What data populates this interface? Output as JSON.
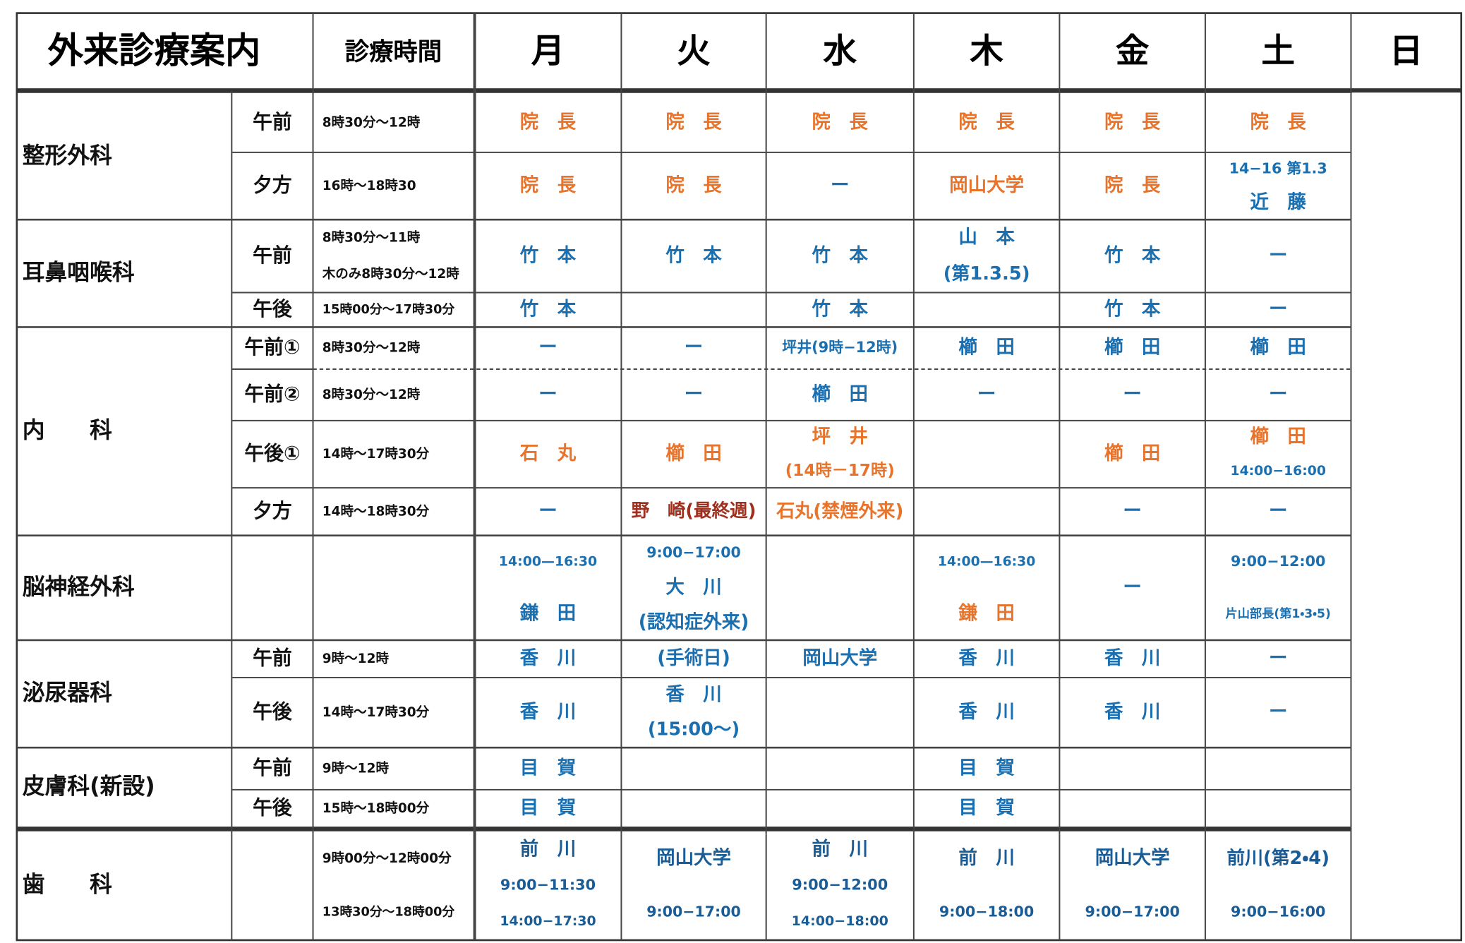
{
  "header": {
    "title": "外来診療案内",
    "time_header": "診療時間",
    "days": [
      "月",
      "火",
      "水",
      "木",
      "金",
      "土",
      "日"
    ]
  },
  "departments": [
    {
      "name": "整形外科",
      "sessions": [
        {
          "label": "午前",
          "hours": [
            "8時30分～12時"
          ],
          "cells": [
            {
              "lines": [
                "院　長"
              ],
              "color": "#e8742c"
            },
            {
              "lines": [
                "院　長"
              ],
              "color": "#e8742c"
            },
            {
              "lines": [
                "院　長"
              ],
              "color": "#e8742c"
            },
            {
              "lines": [
                "院　長"
              ],
              "color": "#e8742c"
            },
            {
              "lines": [
                "院　長"
              ],
              "color": "#e8742c"
            },
            {
              "lines": [
                "院　長"
              ],
              "color": "#e8742c"
            }
          ]
        },
        {
          "label": "夕方",
          "hours": [
            "16時～18時30"
          ],
          "cells": [
            {
              "lines": [
                "院　長"
              ],
              "color": "#e8742c"
            },
            {
              "lines": [
                "院　長"
              ],
              "color": "#e8742c"
            },
            {
              "lines": [
                "ー"
              ],
              "color": "#1a6fb0"
            },
            {
              "lines": [
                "岡山大学"
              ],
              "color": "#e8742c"
            },
            {
              "lines": [
                "院　長"
              ],
              "color": "#e8742c"
            },
            {
              "lines": [
                "14−16 第1.3",
                "近　藤"
              ],
              "color": "#1a6fb0"
            }
          ]
        }
      ]
    },
    {
      "name": "耳鼻咽喉科",
      "sessions": [
        {
          "label": "午前",
          "hours": [
            "8時30分～11時",
            "木のみ8時30分～12時"
          ],
          "cells": [
            {
              "lines": [
                "竹　本"
              ],
              "color": "#1a6fb0"
            },
            {
              "lines": [
                "竹　本"
              ],
              "color": "#1a6fb0"
            },
            {
              "lines": [
                "竹　本"
              ],
              "color": "#1a6fb0"
            },
            {
              "lines": [
                "山　本",
                "(第1.3.5)"
              ],
              "color": "#1a6fb0"
            },
            {
              "lines": [
                "竹　本"
              ],
              "color": "#1a6fb0"
            },
            {
              "lines": [
                "ー"
              ],
              "color": "#1a6fb0"
            }
          ]
        },
        {
          "label": "午後",
          "hours": [
            "15時00分～17時30分"
          ],
          "cells": [
            {
              "lines": [
                "竹　本"
              ],
              "color": "#1a6fb0"
            },
            {
              "lines": []
            },
            {
              "lines": [
                "竹　本"
              ],
              "color": "#1a6fb0"
            },
            {
              "lines": []
            },
            {
              "lines": [
                "竹　本"
              ],
              "color": "#1a6fb0"
            },
            {
              "lines": [
                "ー"
              ],
              "color": "#1a6fb0"
            }
          ]
        }
      ]
    },
    {
      "name": "内　　科",
      "sessions": [
        {
          "label": "午前①",
          "hours": [
            "8時30分～12時"
          ],
          "cells": [
            {
              "lines": [
                "ー"
              ],
              "color": "#1a6fb0"
            },
            {
              "lines": [
                "ー"
              ],
              "color": "#1a6fb0"
            },
            {
              "lines": [
                "坪井(9時−12時)"
              ],
              "color": "#1a6fb0"
            },
            {
              "lines": [
                "櫛　田"
              ],
              "color": "#1a6fb0"
            },
            {
              "lines": [
                "櫛　田"
              ],
              "color": "#1a6fb0"
            },
            {
              "lines": [
                "櫛　田"
              ],
              "color": "#1a6fb0"
            }
          ]
        },
        {
          "label": "午前②",
          "hours": [
            "8時30分～12時"
          ],
          "cells": [
            {
              "lines": [
                "ー"
              ],
              "color": "#1a6fb0"
            },
            {
              "lines": [
                "ー"
              ],
              "color": "#1a6fb0"
            },
            {
              "lines": [
                "櫛　田"
              ],
              "color": "#1a6fb0"
            },
            {
              "lines": [
                "ー"
              ],
              "color": "#1a6fb0"
            },
            {
              "lines": [
                "ー"
              ],
              "color": "#1a6fb0"
            },
            {
              "lines": [
                "ー"
              ],
              "color": "#1a6fb0"
            }
          ]
        },
        {
          "label": "午後①",
          "hours": [
            "14時～17時30分"
          ],
          "cells": [
            {
              "lines": [
                "石　丸"
              ],
              "color": "#e8742c"
            },
            {
              "lines": [
                "櫛　田"
              ],
              "color": "#e8742c"
            },
            {
              "lines": [
                "坪　井",
                "(14時－17時)"
              ],
              "color": "#e8742c"
            },
            {
              "lines": []
            },
            {
              "lines": [
                "櫛　田"
              ],
              "color": "#e8742c"
            },
            {
              "lines": [
                "櫛　田",
                "14:00−16:00"
              ],
              "colors": [
                "#e8742c",
                "#1a6fb0"
              ]
            }
          ]
        },
        {
          "label": "夕方",
          "hours": [
            "14時～18時30分"
          ],
          "cells": [
            {
              "lines": [
                "ー"
              ],
              "color": "#1a6fb0"
            },
            {
              "lines": [
                "野　崎(最終週)"
              ],
              "color": "#a0301e"
            },
            {
              "lines": [
                "石丸(禁煙外来)"
              ],
              "color": "#e8742c"
            },
            {
              "lines": []
            },
            {
              "lines": [
                "ー"
              ],
              "color": "#1a6fb0"
            },
            {
              "lines": [
                "ー"
              ],
              "color": "#1a6fb0"
            }
          ]
        }
      ]
    },
    {
      "name": "脳神経外科",
      "sessions": [
        {
          "hours": [],
          "cells": [
            {
              "lines": [
                "14:00—16:30",
                "鎌　田"
              ],
              "color": "#1a6fb0"
            },
            {
              "lines": [
                "9:00−17:00",
                "大　川",
                "(認知症外来)"
              ],
              "color": "#1a6fb0"
            },
            {
              "lines": []
            },
            {
              "lines": [
                "14:00—16:30",
                "鎌　田"
              ],
              "colors": [
                "#1a6fb0",
                "#e8742c"
              ]
            },
            {
              "lines": [
                "ー"
              ],
              "color": "#1a6fb0"
            },
            {
              "lines": [
                "9:00−12:00",
                "片山部長(第1・3・5)"
              ],
              "color": "#1a6fb0"
            }
          ]
        }
      ]
    },
    {
      "name": "泌尿器科",
      "sessions": [
        {
          "label": "午前",
          "hours": [
            "9時～12時"
          ],
          "cells": [
            {
              "lines": [
                "香　川"
              ],
              "color": "#1a6fb0"
            },
            {
              "lines": [
                "(手術日)"
              ],
              "color": "#1a6fb0"
            },
            {
              "lines": [
                "岡山大学"
              ],
              "color": "#1a6fb0"
            },
            {
              "lines": [
                "香　川"
              ],
              "color": "#1a6fb0"
            },
            {
              "lines": [
                "香　川"
              ],
              "color": "#1a6fb0"
            },
            {
              "lines": [
                "ー"
              ],
              "color": "#1a6fb0"
            }
          ]
        },
        {
          "label": "午後",
          "hours": [
            "14時～17時30分"
          ],
          "cells": [
            {
              "lines": [
                "香　川"
              ],
              "color": "#1a6fb0"
            },
            {
              "lines": [
                "香　川",
                "(15:00～)"
              ],
              "color": "#1a6fb0"
            },
            {
              "lines": []
            },
            {
              "lines": [
                "香　川"
              ],
              "color": "#1a6fb0"
            },
            {
              "lines": [
                "香　川"
              ],
              "color": "#1a6fb0"
            },
            {
              "lines": [
                "ー"
              ],
              "color": "#1a6fb0"
            }
          ]
        }
      ]
    },
    {
      "name": "皮膚科(新設)",
      "sessions": [
        {
          "label": "午前",
          "hours": [
            "9時～12時"
          ],
          "cells": [
            {
              "lines": [
                "目　賀"
              ],
              "color": "#1a6fb0"
            },
            {
              "lines": []
            },
            {
              "lines": []
            },
            {
              "lines": [
                "目　賀"
              ],
              "color": "#1a6fb0"
            },
            {
              "lines": []
            },
            {
              "lines": []
            }
          ]
        },
        {
          "label": "午後",
          "hours": [
            "15時～18時00分"
          ],
          "cells": [
            {
              "lines": [
                "目　賀"
              ],
              "color": "#1a6fb0"
            },
            {
              "lines": []
            },
            {
              "lines": []
            },
            {
              "lines": [
                "目　賀"
              ],
              "color": "#1a6fb0"
            },
            {
              "lines": []
            },
            {
              "lines": []
            }
          ]
        }
      ]
    },
    {
      "name": "歯　　科",
      "sessions": [
        {
          "hours": [
            "9時00分～12時00分",
            "13時30分～18時00分"
          ],
          "cells": [
            {
              "lines": [
                "前　川",
                "9:00−11:30",
                "14:00−17:30"
              ],
              "color": "#1a5c96"
            },
            {
              "lines": [
                "岡山大学",
                "9:00−17:00"
              ],
              "color": "#1a5c96"
            },
            {
              "lines": [
                "前　川",
                "9:00−12:00",
                "14:00−18:00"
              ],
              "color": "#1a5c96"
            },
            {
              "lines": [
                "前　川",
                "9:00−18:00"
              ],
              "color": "#1a5c96"
            },
            {
              "lines": [
                "岡山大学",
                "9:00−17:00"
              ],
              "color": "#1a5c96"
            },
            {
              "lines": [
                "前川(第2・4)",
                "9:00−16:00"
              ],
              "color": "#1a5c96"
            }
          ]
        }
      ]
    }
  ]
}
